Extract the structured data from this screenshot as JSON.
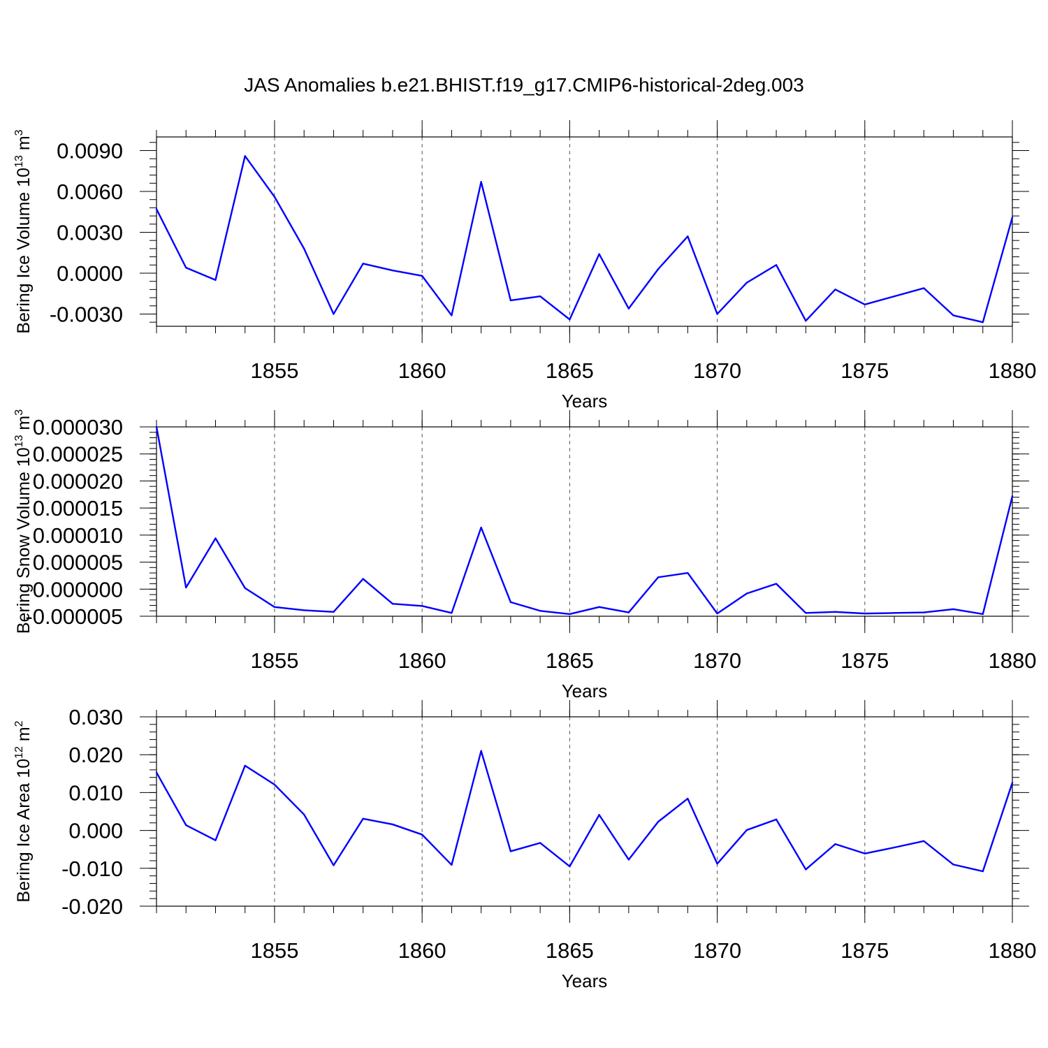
{
  "title": "JAS Anomalies b.e21.BHIST.f19_g17.CMIP6-historical-2deg.003",
  "colors": {
    "series": "#0000ff",
    "axis": "#000000",
    "grid": "#555555"
  },
  "chart_data": [
    {
      "type": "line",
      "ylabel": {
        "prefix": "Bering Ice Volume 10",
        "exponent": "13",
        "unit": " m",
        "unit_exp": "3"
      },
      "xlabel": "Years",
      "xlim": [
        1851,
        1880
      ],
      "ylim": [
        -0.0039,
        0.01
      ],
      "xticks": [
        1855,
        1860,
        1865,
        1870,
        1875,
        1880
      ],
      "yticks": [
        -0.003,
        0.0,
        0.003,
        0.006,
        0.009
      ],
      "ytick_labels": [
        "-0.0030",
        "0.0000",
        "0.0030",
        "0.0060",
        "0.0090"
      ],
      "yminor_step": 0.0006,
      "x": [
        1851,
        1852,
        1853,
        1854,
        1855,
        1856,
        1857,
        1858,
        1859,
        1860,
        1861,
        1862,
        1863,
        1864,
        1865,
        1866,
        1867,
        1868,
        1869,
        1870,
        1871,
        1872,
        1873,
        1874,
        1875,
        1876,
        1877,
        1878,
        1879,
        1880
      ],
      "values": [
        0.0047,
        0.0004,
        -0.0005,
        0.0086,
        0.0056,
        0.0018,
        -0.003,
        0.0007,
        0.0002,
        -0.0002,
        -0.0031,
        0.0067,
        -0.002,
        -0.0017,
        -0.0034,
        0.0014,
        -0.0026,
        0.0003,
        0.0027,
        -0.003,
        -0.0007,
        0.0006,
        -0.0035,
        -0.0012,
        -0.0023,
        -0.0017,
        -0.0011,
        -0.0031,
        -0.0036,
        0.0041
      ]
    },
    {
      "type": "line",
      "ylabel": {
        "prefix": "Bering Snow Volume 10",
        "exponent": "13",
        "unit": " m",
        "unit_exp": "3"
      },
      "xlabel": "Years",
      "xlim": [
        1851,
        1880
      ],
      "ylim": [
        -5e-06,
        3e-05
      ],
      "xticks": [
        1855,
        1860,
        1865,
        1870,
        1875,
        1880
      ],
      "yticks": [
        -5e-06,
        0.0,
        5e-06,
        1e-05,
        1.5e-05,
        2e-05,
        2.5e-05,
        3e-05
      ],
      "ytick_labels": [
        "-0.000005",
        "0.000000",
        "0.000005",
        "0.000010",
        "0.000015",
        "0.000020",
        "0.000025",
        "0.000030"
      ],
      "yminor_step": 1e-06,
      "x": [
        1851,
        1852,
        1853,
        1854,
        1855,
        1856,
        1857,
        1858,
        1859,
        1860,
        1861,
        1862,
        1863,
        1864,
        1865,
        1866,
        1867,
        1868,
        1869,
        1870,
        1871,
        1872,
        1873,
        1874,
        1875,
        1876,
        1877,
        1878,
        1879,
        1880
      ],
      "values": [
        3e-05,
        3e-07,
        9.4e-06,
        2e-07,
        -3.3e-06,
        -3.9e-06,
        -4.2e-06,
        1.9e-06,
        -2.7e-06,
        -3.1e-06,
        -4.4e-06,
        1.14e-05,
        -2.4e-06,
        -4e-06,
        -4.6e-06,
        -3.3e-06,
        -4.3e-06,
        2.2e-06,
        3e-06,
        -4.5e-06,
        -8e-07,
        1e-06,
        -4.4e-06,
        -4.2e-06,
        -4.5e-06,
        -4.4e-06,
        -4.3e-06,
        -3.7e-06,
        -4.6e-06,
        1.72e-05
      ]
    },
    {
      "type": "line",
      "ylabel": {
        "prefix": "Bering Ice Area 10",
        "exponent": "12",
        "unit": " m",
        "unit_exp": "2"
      },
      "xlabel": "Years",
      "xlim": [
        1851,
        1880
      ],
      "ylim": [
        -0.02,
        0.03
      ],
      "xticks": [
        1855,
        1860,
        1865,
        1870,
        1875,
        1880
      ],
      "yticks": [
        -0.02,
        -0.01,
        0.0,
        0.01,
        0.02,
        0.03
      ],
      "ytick_labels": [
        "-0.020",
        "-0.010",
        "0.000",
        "0.010",
        "0.020",
        "0.030"
      ],
      "yminor_step": 0.002,
      "x": [
        1851,
        1852,
        1853,
        1854,
        1855,
        1856,
        1857,
        1858,
        1859,
        1860,
        1861,
        1862,
        1863,
        1864,
        1865,
        1866,
        1867,
        1868,
        1869,
        1870,
        1871,
        1872,
        1873,
        1874,
        1875,
        1876,
        1877,
        1878,
        1879,
        1880
      ],
      "values": [
        0.0153,
        0.0014,
        -0.0026,
        0.0171,
        0.0121,
        0.0042,
        -0.0092,
        0.0031,
        0.0016,
        -0.0011,
        -0.0091,
        0.021,
        -0.0055,
        -0.0033,
        -0.0095,
        0.0041,
        -0.0077,
        0.0023,
        0.0084,
        -0.0088,
        0.0001,
        0.0029,
        -0.0103,
        -0.0036,
        -0.0061,
        -0.0045,
        -0.0028,
        -0.009,
        -0.0108,
        0.0126
      ]
    }
  ]
}
